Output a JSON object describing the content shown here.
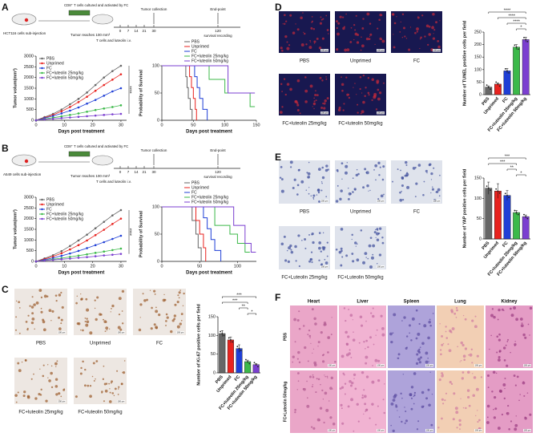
{
  "panel_letters": [
    "A",
    "B",
    "C",
    "D",
    "E",
    "F"
  ],
  "schematics": [
    {
      "cells": "HCT116 cells sub-injection",
      "culture": "CD8⁺ T cells cultured and activated by FC",
      "tumor": "Tumor reaches 100 mm³",
      "treatment": "T cells and luteolin i.v.",
      "days": [
        0,
        7,
        14,
        21,
        30,
        120
      ],
      "collection": "Tumor collection",
      "endpoint": "End-point",
      "survival": "survival recording"
    },
    {
      "cells": "A549 cells sub-injection",
      "culture": "CD8⁺ T cells cultured and activated by FC",
      "tumor": "Tumor reaches 100 mm³",
      "treatment": "T cells and luteolin i.v.",
      "days": [
        0,
        7,
        14,
        21,
        30,
        120
      ],
      "collection": "Tumor collection",
      "endpoint": "End-point",
      "survival": "survival recording"
    }
  ],
  "image_panels": [
    {
      "captions": [
        "PBS",
        "Unprimed",
        "FC",
        "FC+luteolin 25mg/kg",
        "FC+luteolin 50mg/kg"
      ],
      "scale_bar": "100 μm"
    },
    {
      "captions": [
        "PBS",
        "Unprimed",
        "FC",
        "FC+luteolin 25mg/kg",
        "FC+luteolin 50mg/kg"
      ],
      "scale_bar": "100 μm"
    },
    {
      "captions": [
        "PBS",
        "Unprimed",
        "FC",
        "FC+Luteolin 25mg/kg",
        "FC+Luteolin 50mg/kg"
      ],
      "scale_bar": "100 μm"
    }
  ],
  "organ_panel": {
    "columns": [
      "Heart",
      "Liver",
      "Spleen",
      "Lung",
      "Kidney"
    ],
    "rows": [
      "PBS",
      "FC+Luteolin 50mg/kg"
    ],
    "scale_bar": "100 μm"
  },
  "chart_data": [
    {
      "type": "line",
      "xlabel": "Days post treatment",
      "ylabel": "Tumor volum(mm³)",
      "legend": "upper left",
      "significance": "****",
      "x": [
        0,
        3,
        6,
        9,
        12,
        15,
        18,
        21,
        24,
        27,
        30
      ],
      "xlim": [
        0,
        32
      ],
      "xticks": [
        0,
        10,
        20,
        30
      ],
      "ylim": [
        0,
        3000
      ],
      "yticks": [
        0,
        500,
        1000,
        1500,
        2000,
        2500,
        3000
      ],
      "series": [
        {
          "name": "PBS",
          "color": "#666666",
          "values": [
            0,
            150,
            300,
            500,
            750,
            1000,
            1300,
            1650,
            2000,
            2300,
            2550
          ]
        },
        {
          "name": "Unprimed",
          "color": "#e8231f",
          "values": [
            0,
            120,
            250,
            420,
            620,
            850,
            1100,
            1380,
            1650,
            1900,
            2150
          ]
        },
        {
          "name": "FC",
          "color": "#1f3fd6",
          "values": [
            0,
            100,
            200,
            320,
            450,
            600,
            780,
            950,
            1150,
            1350,
            1500
          ]
        },
        {
          "name": "FC+luteolin 25mg/kg",
          "color": "#3cb94a",
          "values": [
            0,
            60,
            120,
            180,
            250,
            320,
            400,
            480,
            550,
            620,
            700
          ]
        },
        {
          "name": "FC+luteolin 50mg/kg",
          "color": "#7b3fd0",
          "values": [
            0,
            40,
            70,
            100,
            130,
            160,
            190,
            220,
            250,
            280,
            300
          ]
        }
      ]
    },
    {
      "type": "line",
      "step": true,
      "xlabel": "Days post treatment",
      "ylabel": "Probability of Survival",
      "legend": "top",
      "xlim": [
        0,
        150
      ],
      "xticks": [
        0,
        50,
        100,
        150
      ],
      "ylim": [
        0,
        100
      ],
      "yticks": [
        0,
        50,
        100
      ],
      "series": [
        {
          "name": "PBS",
          "color": "#666666",
          "x": [
            0,
            38,
            40,
            42,
            45,
            48
          ],
          "values": [
            100,
            80,
            60,
            40,
            20,
            0
          ]
        },
        {
          "name": "Unprimed",
          "color": "#e8231f",
          "x": [
            0,
            44,
            47,
            50,
            53,
            55
          ],
          "values": [
            100,
            80,
            60,
            40,
            20,
            0
          ]
        },
        {
          "name": "FC",
          "color": "#1f3fd6",
          "x": [
            0,
            52,
            56,
            60,
            65,
            72
          ],
          "values": [
            100,
            80,
            60,
            40,
            20,
            0
          ]
        },
        {
          "name": "FC+luteolin 25mg/kg",
          "color": "#3cb94a",
          "x": [
            0,
            75,
            100,
            140
          ],
          "values": [
            100,
            75,
            50,
            25
          ]
        },
        {
          "name": "FC+luteolin 50mg/kg",
          "color": "#7b3fd0",
          "x": [
            0,
            105,
            140
          ],
          "values": [
            100,
            50,
            50
          ]
        }
      ]
    },
    {
      "type": "line",
      "xlabel": "Days post treatment",
      "ylabel": "Tumor volum(mm³)",
      "legend": "upper left",
      "significance": "****",
      "x": [
        0,
        3,
        6,
        9,
        12,
        15,
        18,
        21,
        24,
        27,
        30
      ],
      "xlim": [
        0,
        32
      ],
      "xticks": [
        0,
        10,
        20,
        30
      ],
      "ylim": [
        0,
        3000
      ],
      "yticks": [
        0,
        500,
        1000,
        1500,
        2000,
        2500,
        3000
      ],
      "series": [
        {
          "name": "PBS",
          "color": "#666666",
          "values": [
            0,
            140,
            290,
            480,
            720,
            980,
            1250,
            1550,
            1850,
            2150,
            2400
          ]
        },
        {
          "name": "Unprimed",
          "color": "#e8231f",
          "values": [
            0,
            110,
            230,
            380,
            560,
            760,
            980,
            1230,
            1480,
            1750,
            2000
          ]
        },
        {
          "name": "FC",
          "color": "#1f3fd6",
          "values": [
            0,
            80,
            160,
            260,
            370,
            490,
            620,
            760,
            900,
            1050,
            1200
          ]
        },
        {
          "name": "FC+luteolin 25mg/kg",
          "color": "#3cb94a",
          "values": [
            0,
            50,
            100,
            150,
            210,
            270,
            330,
            400,
            460,
            530,
            600
          ]
        },
        {
          "name": "FC+luteolin 50mg/kg",
          "color": "#7b3fd0",
          "values": [
            0,
            40,
            70,
            100,
            130,
            170,
            200,
            240,
            280,
            310,
            350
          ]
        }
      ]
    },
    {
      "type": "line",
      "step": true,
      "xlabel": "Days post treatment",
      "ylabel": "Probability of Survival",
      "legend": "top",
      "xlim": [
        0,
        125
      ],
      "xticks": [
        0,
        50,
        100
      ],
      "ylim": [
        0,
        100
      ],
      "yticks": [
        0,
        50,
        100
      ],
      "series": [
        {
          "name": "PBS",
          "color": "#666666",
          "x": [
            0,
            40,
            45,
            48,
            52
          ],
          "values": [
            100,
            75,
            50,
            25,
            0
          ]
        },
        {
          "name": "Unprimed",
          "color": "#e8231f",
          "x": [
            0,
            45,
            50,
            55,
            58
          ],
          "values": [
            100,
            75,
            50,
            25,
            0
          ]
        },
        {
          "name": "FC",
          "color": "#1f3fd6",
          "x": [
            0,
            55,
            60,
            65,
            70,
            78
          ],
          "values": [
            100,
            80,
            60,
            40,
            20,
            0
          ]
        },
        {
          "name": "FC+luteolin 25mg/kg",
          "color": "#3cb94a",
          "x": [
            0,
            70,
            90,
            100,
            110
          ],
          "values": [
            100,
            66,
            50,
            33,
            17
          ]
        },
        {
          "name": "FC+luteolin 50mg/kg",
          "color": "#7b3fd0",
          "x": [
            0,
            95,
            110,
            118
          ],
          "values": [
            100,
            66,
            33,
            17
          ]
        }
      ]
    },
    {
      "type": "bar",
      "ylabel": "Number of Ki-67 positive cells per field",
      "categories": [
        "PBS",
        "Unprimed",
        "FC",
        "FC+luteolin 25mg/kg",
        "FC+luteolin 50mg/kg"
      ],
      "values": [
        105,
        88,
        65,
        30,
        22
      ],
      "errors": [
        8,
        8,
        10,
        4,
        3
      ],
      "colors": [
        "#666666",
        "#e8231f",
        "#1f3fd6",
        "#3cb94a",
        "#7b3fd0"
      ],
      "ylim": [
        0,
        150
      ],
      "yticks": [
        0,
        50,
        100,
        150
      ],
      "significance": [
        {
          "label": "***",
          "between": [
            "PBS",
            "FC+luteolin 50mg/kg"
          ]
        },
        {
          "label": "***",
          "between": [
            "PBS",
            "FC+luteolin 25mg/kg"
          ]
        },
        {
          "label": "**",
          "between": [
            "FC",
            "FC+luteolin 25mg/kg"
          ]
        },
        {
          "label": "*",
          "between": [
            "FC+luteolin 25mg/kg",
            "FC+luteolin 50mg/kg"
          ]
        }
      ]
    },
    {
      "type": "bar",
      "ylabel": "Number of TUNEL positive cells per field",
      "categories": [
        "PBS",
        "Unprimed",
        "FC",
        "FC+luteolin 25mg/kg",
        "FC+luteolin 50mg/kg"
      ],
      "values": [
        30,
        42,
        95,
        190,
        220
      ],
      "errors": [
        5,
        5,
        10,
        10,
        10
      ],
      "colors": [
        "#666666",
        "#e8231f",
        "#1f3fd6",
        "#3cb94a",
        "#7b3fd0"
      ],
      "ylim": [
        0,
        250
      ],
      "yticks": [
        0,
        50,
        100,
        150,
        200,
        250
      ],
      "significance": [
        {
          "label": "****",
          "between": [
            "PBS",
            "FC+luteolin 50mg/kg"
          ]
        },
        {
          "label": "****",
          "between": [
            "Unprimed",
            "FC+luteolin 50mg/kg"
          ]
        },
        {
          "label": "****",
          "between": [
            "FC",
            "FC+luteolin 50mg/kg"
          ]
        },
        {
          "label": "*",
          "between": [
            "FC+luteolin 25mg/kg",
            "FC+luteolin 50mg/kg"
          ]
        }
      ]
    },
    {
      "type": "bar",
      "ylabel": "Number of YAP positive cells per field",
      "categories": [
        "PBS",
        "Unprimed",
        "FC",
        "FC+luteolin 25mg/kg",
        "FC+luteolin 50mg/kg"
      ],
      "values": [
        125,
        118,
        107,
        65,
        55
      ],
      "errors": [
        15,
        18,
        12,
        5,
        4
      ],
      "colors": [
        "#666666",
        "#e8231f",
        "#1f3fd6",
        "#3cb94a",
        "#7b3fd0"
      ],
      "ylim": [
        0,
        150
      ],
      "yticks": [
        0,
        50,
        100,
        150
      ],
      "significance": [
        {
          "label": "***",
          "between": [
            "PBS",
            "FC+luteolin 50mg/kg"
          ]
        },
        {
          "label": "***",
          "between": [
            "PBS",
            "FC+luteolin 25mg/kg"
          ]
        },
        {
          "label": "**",
          "between": [
            "FC",
            "FC+luteolin 25mg/kg"
          ]
        },
        {
          "label": "*",
          "between": [
            "FC+luteolin 25mg/kg",
            "FC+luteolin 50mg/kg"
          ]
        }
      ]
    }
  ]
}
